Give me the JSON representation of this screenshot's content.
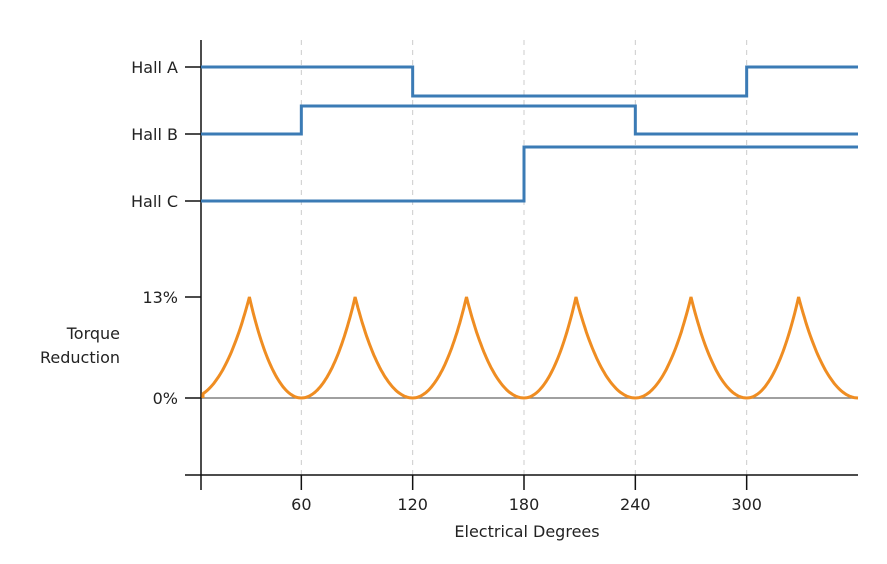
{
  "chart_data": {
    "type": "line",
    "xlabel": "Electrical Degrees",
    "xlim": [
      0,
      360
    ],
    "xticks": [
      60,
      120,
      180,
      240,
      300
    ],
    "xtick_labels": [
      "60",
      "120",
      "180",
      "240",
      "300"
    ],
    "grid": "vertical dashed at x ticks",
    "hall_signals": [
      {
        "name": "Hall A",
        "transitions": [
          [
            0,
            1
          ],
          [
            120,
            0
          ],
          [
            300,
            1
          ]
        ]
      },
      {
        "name": "Hall B",
        "transitions": [
          [
            0,
            0
          ],
          [
            60,
            1
          ],
          [
            240,
            0
          ]
        ]
      },
      {
        "name": "Hall C",
        "transitions": [
          [
            0,
            0
          ],
          [
            180,
            1
          ]
        ]
      }
    ],
    "torque": {
      "label_line1": "Torque",
      "label_line2": "Reduction",
      "yticks": [
        "13%",
        "0%"
      ],
      "ylim_percent": [
        0,
        13
      ],
      "valleys_deg": [
        0,
        60,
        120,
        180,
        240,
        300,
        360
      ],
      "cusps_deg": [
        32,
        89,
        149,
        208,
        270,
        328
      ],
      "peak_percent": 13
    },
    "colors": {
      "hall": "#3b7bb5",
      "torque": "#ef8d22",
      "grid": "#cccccc",
      "baseline": "#808080",
      "axis": "#111111"
    }
  }
}
